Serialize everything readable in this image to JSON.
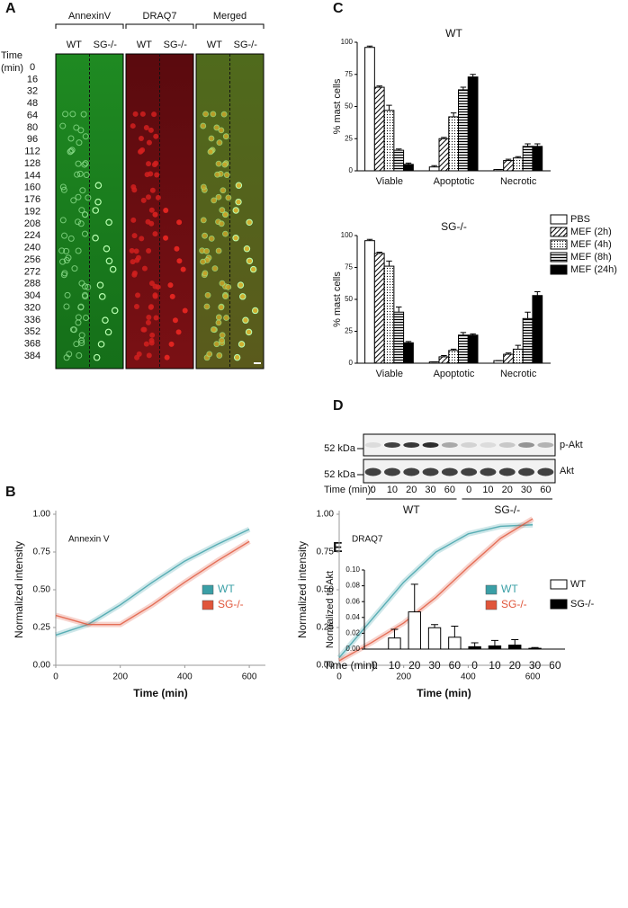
{
  "panel_labels": [
    "A",
    "B",
    "C",
    "D",
    "E"
  ],
  "microscopy": {
    "headers": [
      "AnnexinV",
      "DRAQ7",
      "Merged"
    ],
    "genotypes": [
      "WT",
      "SG-/-"
    ],
    "time_label": [
      "Time",
      "(min)"
    ],
    "times": [
      0,
      16,
      32,
      48,
      64,
      80,
      96,
      112,
      128,
      144,
      160,
      176,
      192,
      208,
      224,
      240,
      256,
      272,
      288,
      304,
      320,
      336,
      352,
      368,
      384
    ]
  },
  "chart_data": [
    {
      "type": "line",
      "title": "Annexin V",
      "x_label": "Time (min)",
      "y_label": "Normalized intensity",
      "x": [
        0,
        100,
        200,
        300,
        400,
        500,
        600
      ],
      "series": [
        {
          "name": "WT",
          "color": "#3a9fa6",
          "values": [
            0.2,
            0.27,
            0.4,
            0.55,
            0.69,
            0.8,
            0.9
          ]
        },
        {
          "name": "SG-/-",
          "color": "#e0553a",
          "values": [
            0.33,
            0.27,
            0.27,
            0.4,
            0.55,
            0.69,
            0.82
          ]
        }
      ],
      "xlim": [
        0,
        650
      ],
      "ylim": [
        0,
        1
      ],
      "xticks": [
        0,
        200,
        400,
        600
      ],
      "yticks": [
        {
          "value": 0,
          "label": "0.00"
        },
        {
          "value": 0.25,
          "label": "0.25"
        },
        {
          "value": 0.5,
          "label": "0.50"
        },
        {
          "value": 0.75,
          "label": "0.75"
        },
        {
          "value": 1,
          "label": "1.00"
        }
      ],
      "legend": "right"
    },
    {
      "type": "line",
      "title": "DRAQ7",
      "x_label": "Time (min)",
      "y_label": "Normalized intensity",
      "x": [
        0,
        100,
        200,
        300,
        400,
        500,
        600
      ],
      "series": [
        {
          "name": "WT",
          "color": "#3a9fa6",
          "values": [
            0.05,
            0.3,
            0.55,
            0.75,
            0.87,
            0.92,
            0.93
          ]
        },
        {
          "name": "SG-/-",
          "color": "#e0553a",
          "values": [
            0.03,
            0.15,
            0.28,
            0.45,
            0.65,
            0.84,
            0.97
          ]
        }
      ],
      "xlim": [
        0,
        650
      ],
      "ylim": [
        0,
        1
      ],
      "xticks": [
        0,
        200,
        400,
        600
      ],
      "yticks": [
        {
          "value": 0,
          "label": "0.00"
        },
        {
          "value": 0.25,
          "label": "0.25"
        },
        {
          "value": 0.5,
          "label": "0.50"
        },
        {
          "value": 0.75,
          "label": "0.75"
        },
        {
          "value": 1,
          "label": "1.00"
        }
      ],
      "legend": "right"
    },
    {
      "type": "bar",
      "title": "WT",
      "y_label": "% mast cells",
      "categories": [
        "Viable",
        "Apoptotic",
        "Necrotic"
      ],
      "series": [
        {
          "name": "PBS",
          "pattern": "white",
          "values": [
            96,
            3,
            1
          ],
          "errors": [
            1,
            1,
            0
          ]
        },
        {
          "name": "MEF (2h)",
          "pattern": "hatch",
          "values": [
            65,
            25,
            8
          ],
          "errors": [
            1,
            1,
            1
          ]
        },
        {
          "name": "MEF (4h)",
          "pattern": "dots",
          "values": [
            47,
            42,
            10
          ],
          "errors": [
            4,
            3,
            1
          ]
        },
        {
          "name": "MEF (8h)",
          "pattern": "lines",
          "values": [
            16,
            63,
            19
          ],
          "errors": [
            1,
            2,
            2
          ]
        },
        {
          "name": "MEF (24h)",
          "pattern": "black",
          "values": [
            5,
            73,
            19
          ],
          "errors": [
            1,
            2,
            2
          ]
        }
      ],
      "ylim": [
        0,
        100
      ],
      "yticks": [
        0,
        25,
        50,
        75,
        100
      ],
      "legend": false
    },
    {
      "type": "bar",
      "title": "SG-/-",
      "y_label": "% mast cells",
      "categories": [
        "Viable",
        "Apoptotic",
        "Necrotic"
      ],
      "series": [
        {
          "name": "PBS",
          "pattern": "white",
          "values": [
            96,
            1,
            2
          ],
          "errors": [
            1,
            0,
            0
          ]
        },
        {
          "name": "MEF (2h)",
          "pattern": "hatch",
          "values": [
            86,
            5,
            7
          ],
          "errors": [
            1,
            1,
            1
          ]
        },
        {
          "name": "MEF (4h)",
          "pattern": "dots",
          "values": [
            76,
            10,
            11
          ],
          "errors": [
            4,
            1,
            3
          ]
        },
        {
          "name": "MEF (8h)",
          "pattern": "lines",
          "values": [
            40,
            22,
            35
          ],
          "errors": [
            4,
            2,
            5
          ]
        },
        {
          "name": "MEF (24h)",
          "pattern": "black",
          "values": [
            16,
            22,
            53
          ],
          "errors": [
            1,
            1,
            3
          ]
        }
      ],
      "ylim": [
        0,
        100
      ],
      "yticks": [
        0,
        25,
        50,
        75,
        100
      ],
      "legend": "right"
    },
    {
      "type": "bar",
      "y_label": "Normalized to Akt",
      "x_label": "Time (min):",
      "categories": [
        0,
        10,
        20,
        30,
        60,
        0,
        10,
        20,
        30,
        60
      ],
      "series": [
        {
          "name": "WT",
          "pattern": "white",
          "values": [
            0,
            0.014,
            0.047,
            0.027,
            0.015,
            null,
            null,
            null,
            null,
            null
          ],
          "errors": [
            0,
            0.011,
            0.035,
            0.004,
            0.014,
            null,
            null,
            null,
            null,
            null
          ]
        },
        {
          "name": "SG-/-",
          "pattern": "black",
          "values": [
            null,
            null,
            null,
            null,
            null,
            0.003,
            0.004,
            0.005,
            0.001,
            0
          ],
          "errors": [
            null,
            null,
            null,
            null,
            null,
            0.005,
            0.007,
            0.007,
            0.001,
            0
          ]
        }
      ],
      "ylim": [
        0,
        0.1
      ],
      "yticks": [
        {
          "value": 0,
          "label": "0.00"
        },
        {
          "value": 0.02,
          "label": "0.02"
        },
        {
          "value": 0.04,
          "label": "0.04"
        },
        {
          "value": 0.06,
          "label": "0.06"
        },
        {
          "value": 0.08,
          "label": "0.08"
        },
        {
          "value": 0.1,
          "label": "0.10"
        }
      ],
      "legend": "right"
    }
  ],
  "blot": {
    "rows": [
      "p-Akt",
      "Akt"
    ],
    "marker": "52 kDa",
    "time_label": "Time (min):",
    "lanes": [
      0,
      10,
      20,
      30,
      60,
      0,
      10,
      20,
      30,
      60
    ],
    "groups": [
      "WT",
      "SG-/-"
    ]
  }
}
